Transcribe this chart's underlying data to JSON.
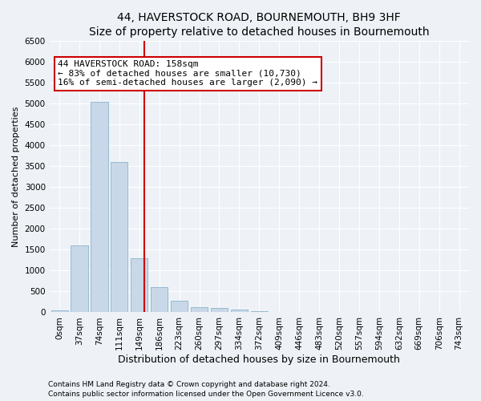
{
  "title": "44, HAVERSTOCK ROAD, BOURNEMOUTH, BH9 3HF",
  "subtitle": "Size of property relative to detached houses in Bournemouth",
  "xlabel": "Distribution of detached houses by size in Bournemouth",
  "ylabel": "Number of detached properties",
  "categories": [
    "0sqm",
    "37sqm",
    "74sqm",
    "111sqm",
    "149sqm",
    "186sqm",
    "223sqm",
    "260sqm",
    "297sqm",
    "334sqm",
    "372sqm",
    "409sqm",
    "446sqm",
    "483sqm",
    "520sqm",
    "557sqm",
    "594sqm",
    "632sqm",
    "669sqm",
    "706sqm",
    "743sqm"
  ],
  "bar_values": [
    50,
    1600,
    5050,
    3600,
    1300,
    600,
    280,
    130,
    100,
    70,
    30,
    10,
    5,
    2,
    1,
    0,
    0,
    0,
    0,
    0,
    0
  ],
  "bar_color": "#c8d8e8",
  "bar_edge_color": "#8ab4cc",
  "ylim": [
    0,
    6500
  ],
  "yticks": [
    0,
    500,
    1000,
    1500,
    2000,
    2500,
    3000,
    3500,
    4000,
    4500,
    5000,
    5500,
    6000,
    6500
  ],
  "vline_color": "#cc0000",
  "annotation_text": "44 HAVERSTOCK ROAD: 158sqm\n← 83% of detached houses are smaller (10,730)\n16% of semi-detached houses are larger (2,090) →",
  "annotation_box_color": "#cc0000",
  "footer1": "Contains HM Land Registry data © Crown copyright and database right 2024.",
  "footer2": "Contains public sector information licensed under the Open Government Licence v3.0.",
  "background_color": "#eef2f7",
  "plot_bg_color": "#eef2f7",
  "title_fontsize": 10,
  "subtitle_fontsize": 9,
  "xlabel_fontsize": 9,
  "ylabel_fontsize": 8,
  "tick_fontsize": 7.5,
  "annotation_fontsize": 8,
  "footer_fontsize": 6.5
}
